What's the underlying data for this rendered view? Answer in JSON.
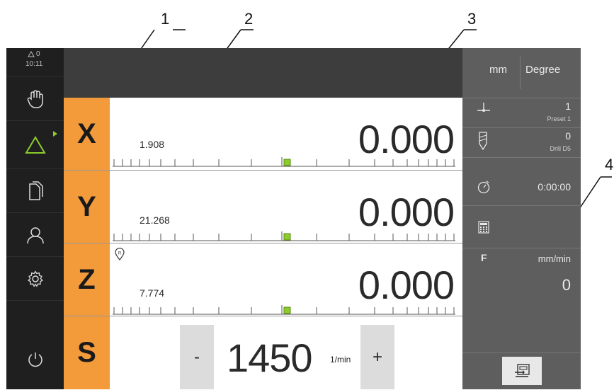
{
  "callouts": [
    "1",
    "2",
    "3",
    "4"
  ],
  "status": {
    "warnings": "0",
    "time": "10:11"
  },
  "sidebar": {
    "items": [
      {
        "icon": "hand-icon"
      },
      {
        "icon": "delta-triangle-icon",
        "active": true
      },
      {
        "icon": "documents-icon"
      },
      {
        "icon": "user-icon"
      },
      {
        "icon": "gear-icon"
      },
      {
        "icon": "power-icon"
      }
    ]
  },
  "axes": [
    {
      "letter": "X",
      "distance": "1.908",
      "value": "0.000",
      "reference_mark": false
    },
    {
      "letter": "Y",
      "distance": "21.268",
      "value": "0.000",
      "reference_mark": false
    },
    {
      "letter": "Z",
      "distance": "7.774",
      "value": "0.000",
      "reference_mark": true,
      "reference_label": "R"
    }
  ],
  "spindle": {
    "letter": "S",
    "minus": "-",
    "value": "1450",
    "unit": "1/min",
    "plus": "+"
  },
  "right_panel": {
    "unit_linear": "mm",
    "unit_angular": "Degree",
    "preset": {
      "value": "1",
      "label": "Preset 1"
    },
    "tool": {
      "value": "0",
      "label": "Drill D5"
    },
    "timer": {
      "value": "0:00:00"
    },
    "feed": {
      "letter": "F",
      "unit": "mm/min",
      "value": "0"
    }
  },
  "colors": {
    "accent": "#f39a3a",
    "nav_bg": "#1f1f1f",
    "topbar_bg": "#3d3d3d",
    "panel_bg": "#5e5e5e",
    "active_green": "#8ccc2c"
  }
}
